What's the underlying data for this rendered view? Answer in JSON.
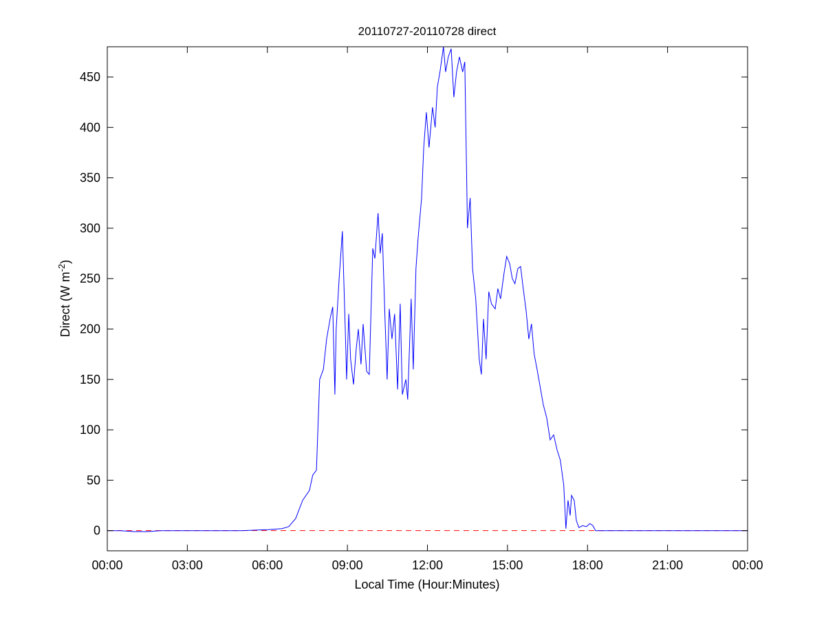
{
  "chart_data": {
    "type": "line",
    "title": "20110727-20110728 direct",
    "xlabel": "Local Time (Hour:Minutes)",
    "ylabel": "Direct (W m",
    "ylabel_superscript": "-2",
    "ylabel_suffix": ")",
    "xlim_hours": [
      0,
      24
    ],
    "ylim": [
      -20,
      480
    ],
    "xticks_hours": [
      0,
      3,
      6,
      9,
      12,
      15,
      18,
      21,
      24
    ],
    "xtick_labels": [
      "00:00",
      "03:00",
      "06:00",
      "09:00",
      "12:00",
      "15:00",
      "18:00",
      "21:00",
      "00:00"
    ],
    "yticks": [
      0,
      50,
      100,
      150,
      200,
      250,
      300,
      350,
      400,
      450
    ],
    "grid": false,
    "series_color": "#0000ff",
    "reference_line": {
      "y": 0,
      "color": "#ff0000",
      "style": "dashed"
    },
    "series": [
      {
        "x_hours": [
          0,
          0.5,
          1,
          1.5,
          2,
          3,
          4,
          5,
          6.03,
          6.55,
          6.8,
          7.06,
          7.32,
          7.58,
          7.7,
          7.84,
          7.96,
          8.1,
          8.22,
          8.35,
          8.45,
          8.53,
          8.58,
          8.69,
          8.81,
          8.92,
          8.97,
          9.05,
          9.12,
          9.23,
          9.33,
          9.41,
          9.51,
          9.59,
          9.72,
          9.82,
          9.95,
          10.03,
          10.15,
          10.23,
          10.31,
          10.41,
          10.49,
          10.57,
          10.67,
          10.77,
          10.88,
          10.98,
          11.06,
          11.19,
          11.26,
          11.39,
          11.47,
          11.57,
          11.65,
          11.78,
          11.86,
          11.96,
          12.06,
          12.19,
          12.29,
          12.37,
          12.47,
          12.6,
          12.68,
          12.78,
          12.89,
          12.99,
          13.09,
          13.2,
          13.32,
          13.4,
          13.5,
          13.6,
          13.69,
          13.81,
          13.94,
          14.02,
          14.1,
          14.2,
          14.3,
          14.4,
          14.54,
          14.64,
          14.74,
          14.87,
          14.97,
          15.08,
          15.18,
          15.28,
          15.39,
          15.49,
          15.59,
          15.7,
          15.8,
          15.9,
          16.0,
          16.11,
          16.21,
          16.34,
          16.47,
          16.6,
          16.73,
          16.86,
          16.98,
          17.11,
          17.19,
          17.27,
          17.35,
          17.4,
          17.5,
          17.58,
          17.68,
          17.81,
          17.96,
          18.09,
          18.2,
          18.3,
          20,
          22,
          24
        ],
        "values": [
          0,
          0,
          -1,
          -1,
          0,
          0,
          0,
          0,
          1,
          2,
          4,
          12,
          30,
          40,
          55,
          60,
          150,
          160,
          190,
          210,
          222,
          135,
          200,
          250,
          297,
          200,
          150,
          215,
          170,
          145,
          180,
          200,
          165,
          205,
          158,
          155,
          280,
          270,
          315,
          275,
          295,
          210,
          150,
          220,
          190,
          215,
          140,
          225,
          135,
          150,
          130,
          230,
          160,
          260,
          290,
          330,
          380,
          415,
          380,
          420,
          400,
          440,
          455,
          480,
          455,
          470,
          478,
          430,
          455,
          470,
          455,
          465,
          300,
          330,
          260,
          230,
          170,
          155,
          210,
          170,
          237,
          225,
          220,
          240,
          230,
          255,
          272,
          265,
          250,
          245,
          260,
          262,
          240,
          218,
          190,
          205,
          175,
          160,
          145,
          125,
          112,
          90,
          95,
          80,
          70,
          45,
          2,
          30,
          15,
          35,
          30,
          10,
          3,
          5,
          4,
          7,
          5,
          0,
          0,
          0,
          0
        ]
      }
    ]
  }
}
